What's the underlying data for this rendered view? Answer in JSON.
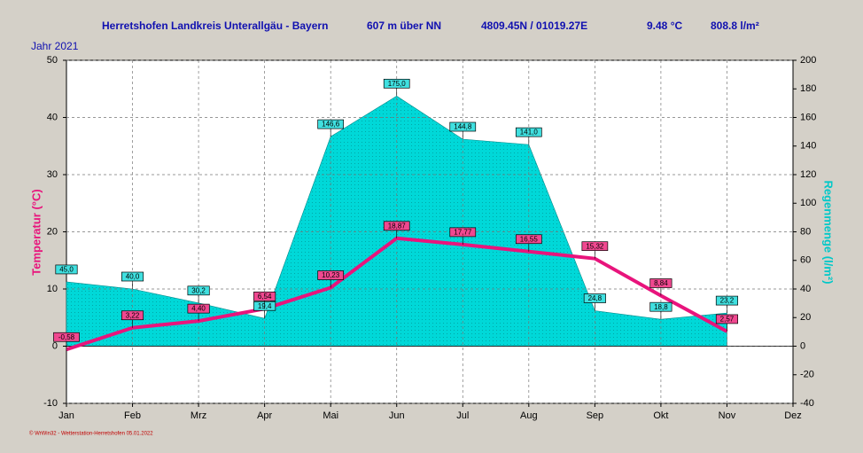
{
  "chart_data": {
    "type": "combo",
    "title": "Herretshofen Landkreis Unterallgäu - Bayern",
    "altitude": "607 m über NN",
    "coordinates": "4809.45N / 01019.27E",
    "mean_temperature": "9.48 °C",
    "total_rain": "808.8 l/m²",
    "subtitle": "Jahr  2021",
    "ylabel": "Temperatur  (°C)",
    "y2label": "Regenmenge  (l/m²)",
    "footer": "© WrWin32 - Wetterstation-Herretshofen  05.01.2022",
    "categories": [
      "Jan",
      "Feb",
      "Mrz",
      "Apr",
      "Mai",
      "Jun",
      "Jul",
      "Aug",
      "Sep",
      "Okt",
      "Nov",
      "Dez"
    ],
    "series": [
      {
        "type": "area",
        "axis": "y2",
        "color": "#00d8d8",
        "values": [
          45.0,
          40.0,
          30.2,
          19.4,
          146.6,
          175.0,
          144.8,
          141.0,
          24.8,
          18.8,
          23.2,
          null
        ],
        "value_labels": [
          "45,0",
          "40,0",
          "30,2",
          "19,4",
          "146,6",
          "175,0",
          "144,8",
          "141,0",
          "24,8",
          "18,8",
          "23,2",
          null
        ]
      },
      {
        "type": "line",
        "axis": "y",
        "color": "#e8147c",
        "values": [
          -0.58,
          3.22,
          4.4,
          6.54,
          10.23,
          18.87,
          17.77,
          16.55,
          15.32,
          8.84,
          2.57,
          null
        ],
        "value_labels": [
          "-0,58",
          "3,22",
          "4,40",
          "6,54",
          "10,23",
          "18,87",
          "17,77",
          "16,55",
          "15,32",
          "8,84",
          "2,57",
          null
        ]
      }
    ],
    "ylim": [
      -10,
      50
    ],
    "yticks": [
      -10,
      0,
      10,
      20,
      30,
      40,
      50
    ],
    "y2lim": [
      -40,
      200
    ],
    "y2ticks": [
      -40,
      -20,
      0,
      20,
      40,
      60,
      80,
      100,
      120,
      140,
      160,
      180,
      200
    ],
    "grid": true
  }
}
